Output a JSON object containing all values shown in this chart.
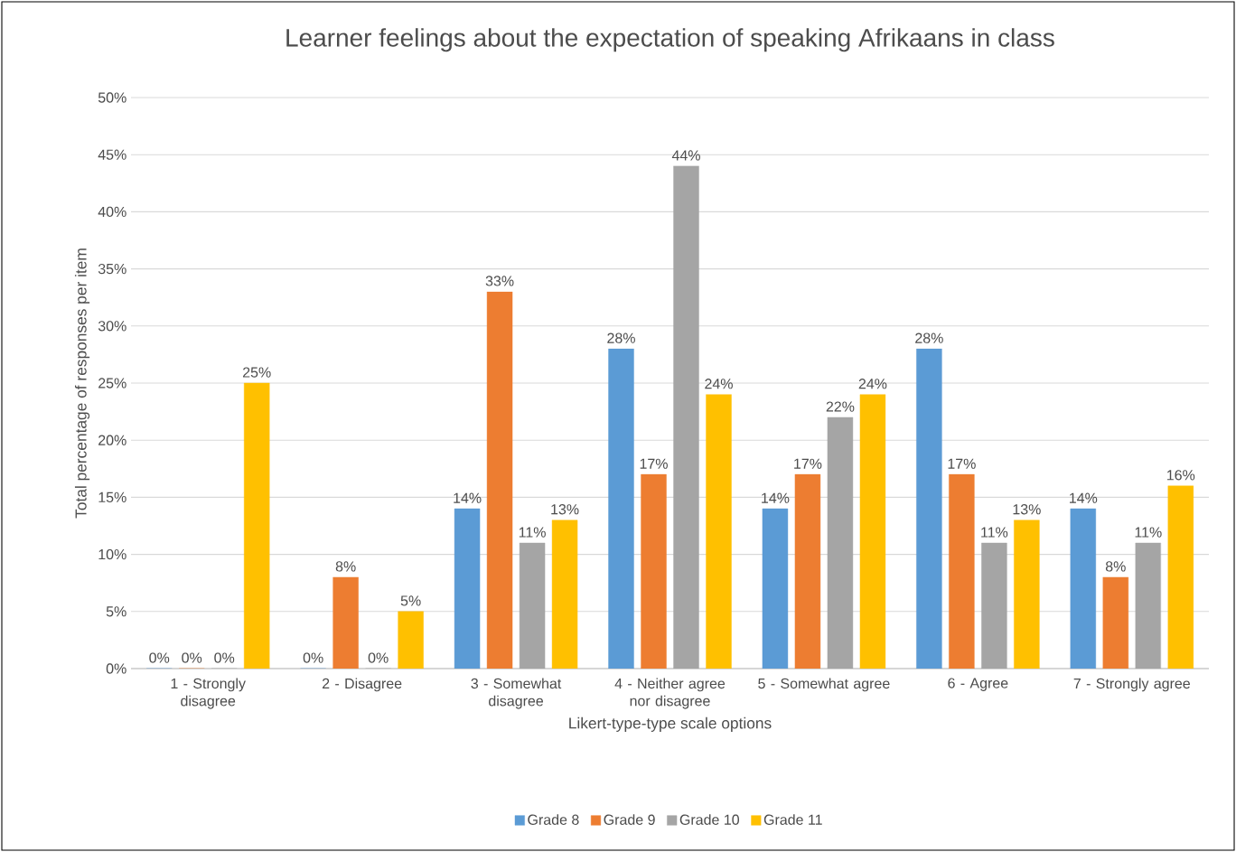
{
  "chart_data": {
    "type": "bar",
    "title": "Learner feelings about the expectation of speaking Afrikaans in class",
    "xlabel": "Likert-type-type scale options",
    "ylabel": "Total percentage of responses per item",
    "categories": [
      "1 - Strongly disagree",
      "2 - Disagree",
      "3 - Somewhat disagree",
      "4 - Neither agree nor disagree",
      "5 - Somewhat agree",
      "6 - Agree",
      "7 - Strongly agree"
    ],
    "series": [
      {
        "name": "Grade 8",
        "color": "#5b9bd5",
        "values": [
          0,
          0,
          14,
          28,
          14,
          28,
          14
        ],
        "value_labels": [
          "0%",
          "0%",
          "14%",
          "28%",
          "14%",
          "28%",
          "14%"
        ]
      },
      {
        "name": "Grade 9",
        "color": "#ed7d31",
        "values": [
          0,
          8,
          33,
          17,
          17,
          17,
          8
        ],
        "value_labels": [
          "0%",
          "8%",
          "33%",
          "17%",
          "17%",
          "17%",
          "8%"
        ]
      },
      {
        "name": "Grade 10",
        "color": "#a5a5a5",
        "values": [
          0,
          0,
          11,
          44,
          22,
          11,
          11
        ],
        "value_labels": [
          "0%",
          "0%",
          "11%",
          "44%",
          "22%",
          "11%",
          "11%"
        ]
      },
      {
        "name": "Grade 11",
        "color": "#ffc000",
        "values": [
          25,
          5,
          13,
          24,
          24,
          13,
          16
        ],
        "value_labels": [
          "25%",
          "5%",
          "13%",
          "24%",
          "24%",
          "13%",
          "16%"
        ]
      }
    ],
    "ylim": [
      0,
      50
    ],
    "yticks": [
      {
        "value": 0,
        "label": "0%"
      },
      {
        "value": 5,
        "label": "5%"
      },
      {
        "value": 10,
        "label": "10%"
      },
      {
        "value": 15,
        "label": "15%"
      },
      {
        "value": 20,
        "label": "20%"
      },
      {
        "value": 25,
        "label": "25%"
      },
      {
        "value": 30,
        "label": "30%"
      },
      {
        "value": 35,
        "label": "35%"
      },
      {
        "value": 40,
        "label": "40%"
      },
      {
        "value": 45,
        "label": "45%"
      },
      {
        "value": 50,
        "label": "50%"
      }
    ],
    "grid": "y",
    "legend": "bottom"
  }
}
